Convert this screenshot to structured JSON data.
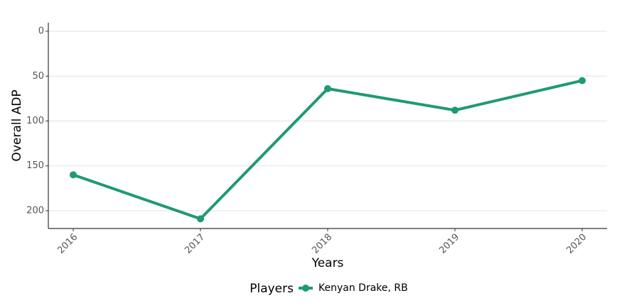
{
  "chart_data": {
    "type": "line",
    "x_label": "Years",
    "y_label": "Overall ADP",
    "categories": [
      "2016",
      "2017",
      "2018",
      "2019",
      "2020"
    ],
    "series": [
      {
        "name": "Kenyan Drake, RB",
        "color": "#1f9a72",
        "values": [
          160,
          209,
          64,
          88,
          55
        ]
      }
    ],
    "legend_title": "Players",
    "legend_position": "bottom",
    "ylim": [
      -9.5,
      219.8
    ],
    "y_inverted": true,
    "yticks": [
      0,
      50,
      100,
      150,
      200
    ],
    "grid": true
  }
}
